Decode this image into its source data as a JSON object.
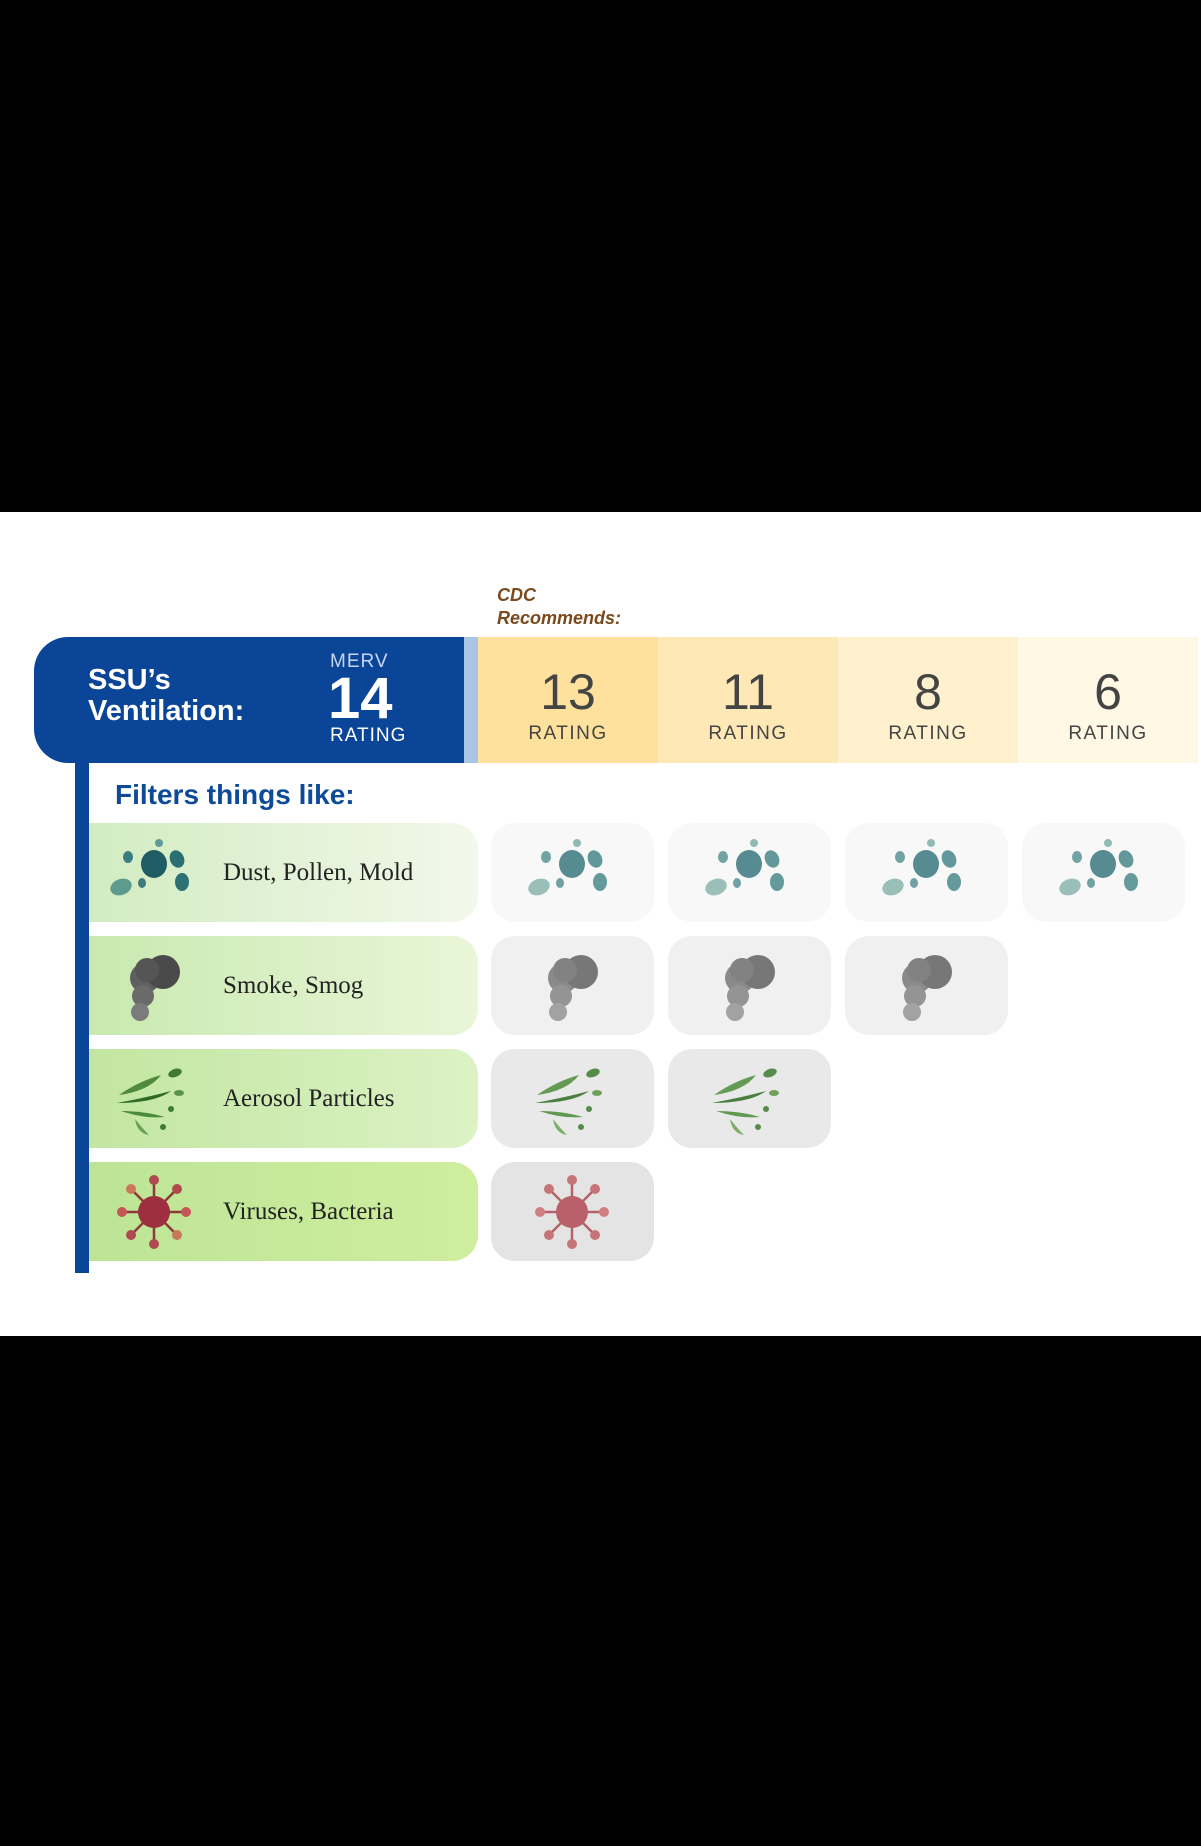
{
  "header": {
    "cdc_line1": "CDC",
    "cdc_line2": "Recommends:",
    "ssu_line1": "SSU’s",
    "ssu_line2": "Ventilation:",
    "merv_label": "MERV",
    "merv_value": "14",
    "merv_rating_label": "RATING"
  },
  "ratings": [
    {
      "value": "13",
      "label": "RATING",
      "color": "#fde19c"
    },
    {
      "value": "11",
      "label": "RATING",
      "color": "#fee9b6"
    },
    {
      "value": "8",
      "label": "RATING",
      "color": "#fff1ce"
    },
    {
      "value": "6",
      "label": "RATING",
      "color": "#fff8e5"
    }
  ],
  "filters_title": "Filters things like:",
  "rows": [
    {
      "label": "Dust, Pollen, Mold",
      "icon": "dust-pollen-mold-icon",
      "filtered_by_columns": 4
    },
    {
      "label": "Smoke, Smog",
      "icon": "smoke-icon",
      "filtered_by_columns": 3
    },
    {
      "label": "Aerosol Particles",
      "icon": "aerosol-icon",
      "filtered_by_columns": 2
    },
    {
      "label": "Viruses, Bacteria",
      "icon": "virus-icon",
      "filtered_by_columns": 1
    }
  ],
  "colors": {
    "ssu_blue": "#0b4597",
    "cdc_brown": "#7a4a1f",
    "dust_teal": "#2e6f73",
    "smoke_gray": "#6f6f6f",
    "aerosol_green": "#3f7a34",
    "virus_red": "#a23345"
  }
}
